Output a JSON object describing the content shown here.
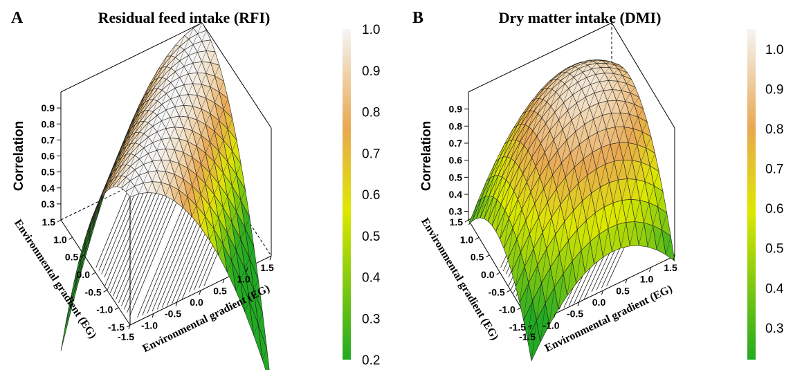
{
  "chart_data": [
    {
      "type": "surface3d",
      "panel_label": "A",
      "title": "Residual feed intake (RFI)",
      "zlabel": "Correlation",
      "xlabel": "Environmental gradient (EG)",
      "ylabel": "Environmental gradient (EG)",
      "x_ticks": [
        "-1.5",
        "-1.0",
        "-0.5",
        "0.0",
        "0.5",
        "1.0",
        "1.5"
      ],
      "y_ticks": [
        "1.5",
        "1.0",
        "0.5",
        "0.0",
        "-0.5",
        "-1.0",
        "-1.5"
      ],
      "z_ticks": [
        "0.3",
        "0.4",
        "0.5",
        "0.6",
        "0.7",
        "0.8",
        "0.9"
      ],
      "xlim": [
        -1.5,
        1.5
      ],
      "ylim": [
        -1.5,
        1.5
      ],
      "zlim": [
        0.2,
        1.0
      ],
      "z_formula": "1 - 0.18*(x-y)^2",
      "colorbar": {
        "ticks": [
          "0.2",
          "0.3",
          "0.4",
          "0.5",
          "0.6",
          "0.7",
          "0.8",
          "0.9",
          "1.0"
        ],
        "range": [
          0.2,
          1.0
        ],
        "colors": [
          "#22aa22",
          "#dde800",
          "#e8a850",
          "#f5f5f5"
        ]
      },
      "contours": true
    },
    {
      "type": "surface3d",
      "panel_label": "B",
      "title": "Dry matter intake (DMI)",
      "zlabel": "Correlation",
      "xlabel": "Environmental gradient (EG)",
      "ylabel": "Environmental gradient (EG)",
      "x_ticks": [
        "-1.5",
        "-1.0",
        "-0.5",
        "0.0",
        "0.5",
        "1.0",
        "1.5"
      ],
      "y_ticks": [
        "1.5",
        "1.0",
        "0.5",
        "0.0",
        "-0.5",
        "-1.0",
        "-1.5"
      ],
      "z_ticks": [
        "0.3",
        "0.4",
        "0.5",
        "0.6",
        "0.7",
        "0.8",
        "0.9"
      ],
      "xlim": [
        -1.5,
        1.5
      ],
      "ylim": [
        -1.5,
        1.5
      ],
      "zlim": [
        0.25,
        1.0
      ],
      "z_formula": "1 - 0.08*(x-y)^2 - 0.06*(x+y-1)^2",
      "colorbar": {
        "ticks": [
          "0.3",
          "0.4",
          "0.5",
          "0.6",
          "0.7",
          "0.8",
          "0.9",
          "1.0"
        ],
        "range": [
          0.22,
          1.05
        ],
        "colors": [
          "#22aa22",
          "#dde800",
          "#e8a850",
          "#f5f5f5"
        ]
      },
      "contours": true
    }
  ]
}
